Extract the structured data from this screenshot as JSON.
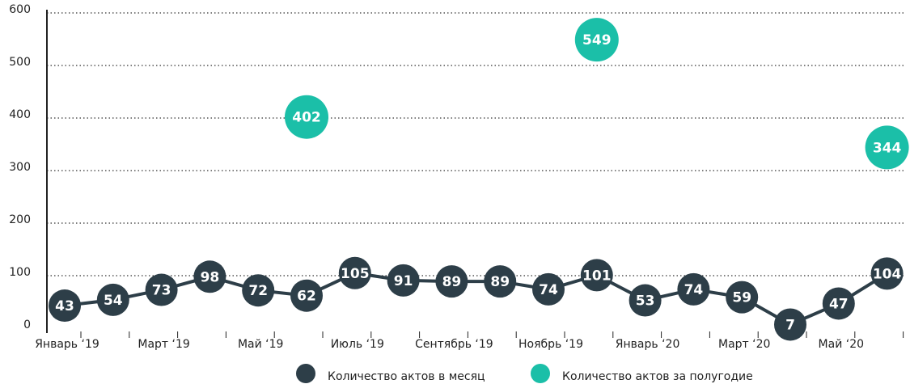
{
  "chart_data": {
    "type": "line",
    "categories": [
      "Январь ‘19",
      null,
      "Март ‘19",
      null,
      "Май ‘19",
      null,
      "Июль ‘19",
      null,
      "Сентябрь ‘19",
      null,
      "Ноябрь ‘19",
      null,
      "Январь ‘20",
      null,
      "Март ‘20",
      null,
      "Май ‘20",
      null
    ],
    "series": [
      {
        "name": "Количество актов в месяц",
        "color": "#2d3e48",
        "type": "line",
        "values": [
          43,
          54,
          73,
          98,
          72,
          62,
          105,
          91,
          89,
          89,
          74,
          101,
          53,
          74,
          59,
          7,
          47,
          104
        ]
      },
      {
        "name": "Количество актов за полугодие",
        "color": "#1bbfa8",
        "type": "scatter",
        "values": [
          null,
          null,
          null,
          null,
          null,
          402,
          null,
          null,
          null,
          null,
          null,
          549,
          null,
          null,
          null,
          null,
          null,
          344
        ]
      }
    ],
    "ylim": [
      0,
      600
    ],
    "yticks": [
      0,
      100,
      200,
      300,
      400,
      500,
      600
    ],
    "grid": true,
    "legend": "bottom"
  }
}
